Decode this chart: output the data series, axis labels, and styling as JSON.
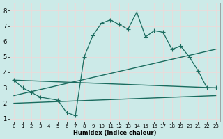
{
  "xlabel": "Humidex (Indice chaleur)",
  "xlim": [
    -0.5,
    23.5
  ],
  "ylim": [
    0.8,
    8.5
  ],
  "xticks": [
    0,
    1,
    2,
    3,
    4,
    5,
    6,
    7,
    8,
    9,
    10,
    11,
    12,
    13,
    14,
    15,
    16,
    17,
    18,
    19,
    20,
    21,
    22,
    23
  ],
  "yticks": [
    1,
    2,
    3,
    4,
    5,
    6,
    7,
    8
  ],
  "bg_color": "#cceae8",
  "grid_color": "#f0d8d8",
  "line_color": "#1a6b5e",
  "series": [
    {
      "x": [
        0,
        1,
        2,
        3,
        4,
        5,
        6,
        7,
        8,
        9,
        10,
        11,
        12,
        13,
        14,
        15,
        16,
        17,
        18,
        19,
        20,
        21,
        22,
        23
      ],
      "y": [
        3.5,
        3.0,
        2.7,
        2.4,
        2.3,
        2.2,
        1.4,
        1.2,
        5.0,
        6.4,
        7.2,
        7.4,
        7.1,
        6.8,
        7.9,
        6.3,
        6.7,
        6.6,
        5.5,
        5.7,
        5.0,
        4.1,
        3.0,
        3.0
      ],
      "marker": "+",
      "markersize": 4,
      "linestyle": "-",
      "linewidth": 0.9
    },
    {
      "x": [
        0,
        23
      ],
      "y": [
        3.5,
        3.0
      ],
      "marker": null,
      "markersize": 0,
      "linestyle": "-",
      "linewidth": 1.0
    },
    {
      "x": [
        0,
        23
      ],
      "y": [
        2.5,
        5.5
      ],
      "marker": null,
      "markersize": 0,
      "linestyle": "-",
      "linewidth": 1.0
    },
    {
      "x": [
        0,
        23
      ],
      "y": [
        2.0,
        2.5
      ],
      "marker": null,
      "markersize": 0,
      "linestyle": "-",
      "linewidth": 1.0
    }
  ]
}
